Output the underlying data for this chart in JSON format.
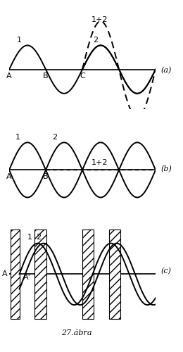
{
  "fig_width": 2.6,
  "fig_height": 5.0,
  "dpi": 100,
  "background": "#ffffff",
  "panel_a_label": "(a)",
  "panel_b_label": "(b)",
  "panel_c_label": "(c)",
  "caption": "27.ábra",
  "lw": 1.4,
  "lw_axis": 1.2
}
